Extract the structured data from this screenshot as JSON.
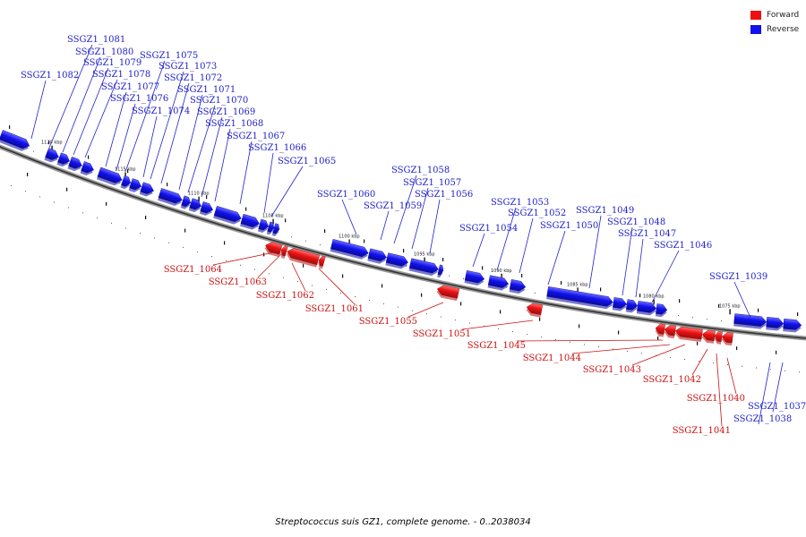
{
  "legend": [
    {
      "label": "Forward",
      "color": "#ee1111"
    },
    {
      "label": "Reverse",
      "color": "#1111ee"
    }
  ],
  "caption": "Streptococcus suis GZ1, complete genome. - 0..2038034",
  "ticks": [
    "1120 kbp",
    "1115 kbp",
    "1110 kbp",
    "1105 kbp",
    "1100 kbp",
    "1095 kbp",
    "1090 kbp",
    "1085 kbp",
    "1080 kbp",
    "1075 kbp"
  ],
  "genes": [
    {
      "name": "SSGZ1_1082",
      "strand": "reverse"
    },
    {
      "name": "SSGZ1_1081",
      "strand": "reverse"
    },
    {
      "name": "SSGZ1_1080",
      "strand": "reverse"
    },
    {
      "name": "SSGZ1_1079",
      "strand": "reverse"
    },
    {
      "name": "SSGZ1_1078",
      "strand": "reverse"
    },
    {
      "name": "SSGZ1_1077",
      "strand": "reverse"
    },
    {
      "name": "SSGZ1_1076",
      "strand": "reverse"
    },
    {
      "name": "SSGZ1_1075",
      "strand": "reverse"
    },
    {
      "name": "SSGZ1_1074",
      "strand": "reverse"
    },
    {
      "name": "SSGZ1_1073",
      "strand": "reverse"
    },
    {
      "name": "SSGZ1_1072",
      "strand": "reverse"
    },
    {
      "name": "SSGZ1_1071",
      "strand": "reverse"
    },
    {
      "name": "SSGZ1_1070",
      "strand": "reverse"
    },
    {
      "name": "SSGZ1_1069",
      "strand": "reverse"
    },
    {
      "name": "SSGZ1_1068",
      "strand": "reverse"
    },
    {
      "name": "SSGZ1_1067",
      "strand": "reverse"
    },
    {
      "name": "SSGZ1_1066",
      "strand": "reverse"
    },
    {
      "name": "SSGZ1_1065",
      "strand": "reverse"
    },
    {
      "name": "SSGZ1_1064",
      "strand": "forward"
    },
    {
      "name": "SSGZ1_1063",
      "strand": "forward"
    },
    {
      "name": "SSGZ1_1062",
      "strand": "forward"
    },
    {
      "name": "SSGZ1_1061",
      "strand": "forward"
    },
    {
      "name": "SSGZ1_1060",
      "strand": "reverse"
    },
    {
      "name": "SSGZ1_1059",
      "strand": "reverse"
    },
    {
      "name": "SSGZ1_1058",
      "strand": "reverse"
    },
    {
      "name": "SSGZ1_1057",
      "strand": "reverse"
    },
    {
      "name": "SSGZ1_1056",
      "strand": "reverse"
    },
    {
      "name": "SSGZ1_1055",
      "strand": "forward"
    },
    {
      "name": "SSGZ1_1054",
      "strand": "reverse"
    },
    {
      "name": "SSGZ1_1053",
      "strand": "reverse"
    },
    {
      "name": "SSGZ1_1052",
      "strand": "reverse"
    },
    {
      "name": "SSGZ1_1051",
      "strand": "forward"
    },
    {
      "name": "SSGZ1_1050",
      "strand": "reverse"
    },
    {
      "name": "SSGZ1_1049",
      "strand": "reverse"
    },
    {
      "name": "SSGZ1_1048",
      "strand": "reverse"
    },
    {
      "name": "SSGZ1_1047",
      "strand": "reverse"
    },
    {
      "name": "SSGZ1_1046",
      "strand": "reverse"
    },
    {
      "name": "SSGZ1_1045",
      "strand": "forward"
    },
    {
      "name": "SSGZ1_1044",
      "strand": "forward"
    },
    {
      "name": "SSGZ1_1043",
      "strand": "forward"
    },
    {
      "name": "SSGZ1_1042",
      "strand": "forward"
    },
    {
      "name": "SSGZ1_1041",
      "strand": "forward"
    },
    {
      "name": "SSGZ1_1040",
      "strand": "forward"
    },
    {
      "name": "SSGZ1_1039",
      "strand": "reverse"
    },
    {
      "name": "SSGZ1_1038",
      "strand": "reverse"
    },
    {
      "name": "SSGZ1_1037",
      "strand": "reverse"
    }
  ]
}
